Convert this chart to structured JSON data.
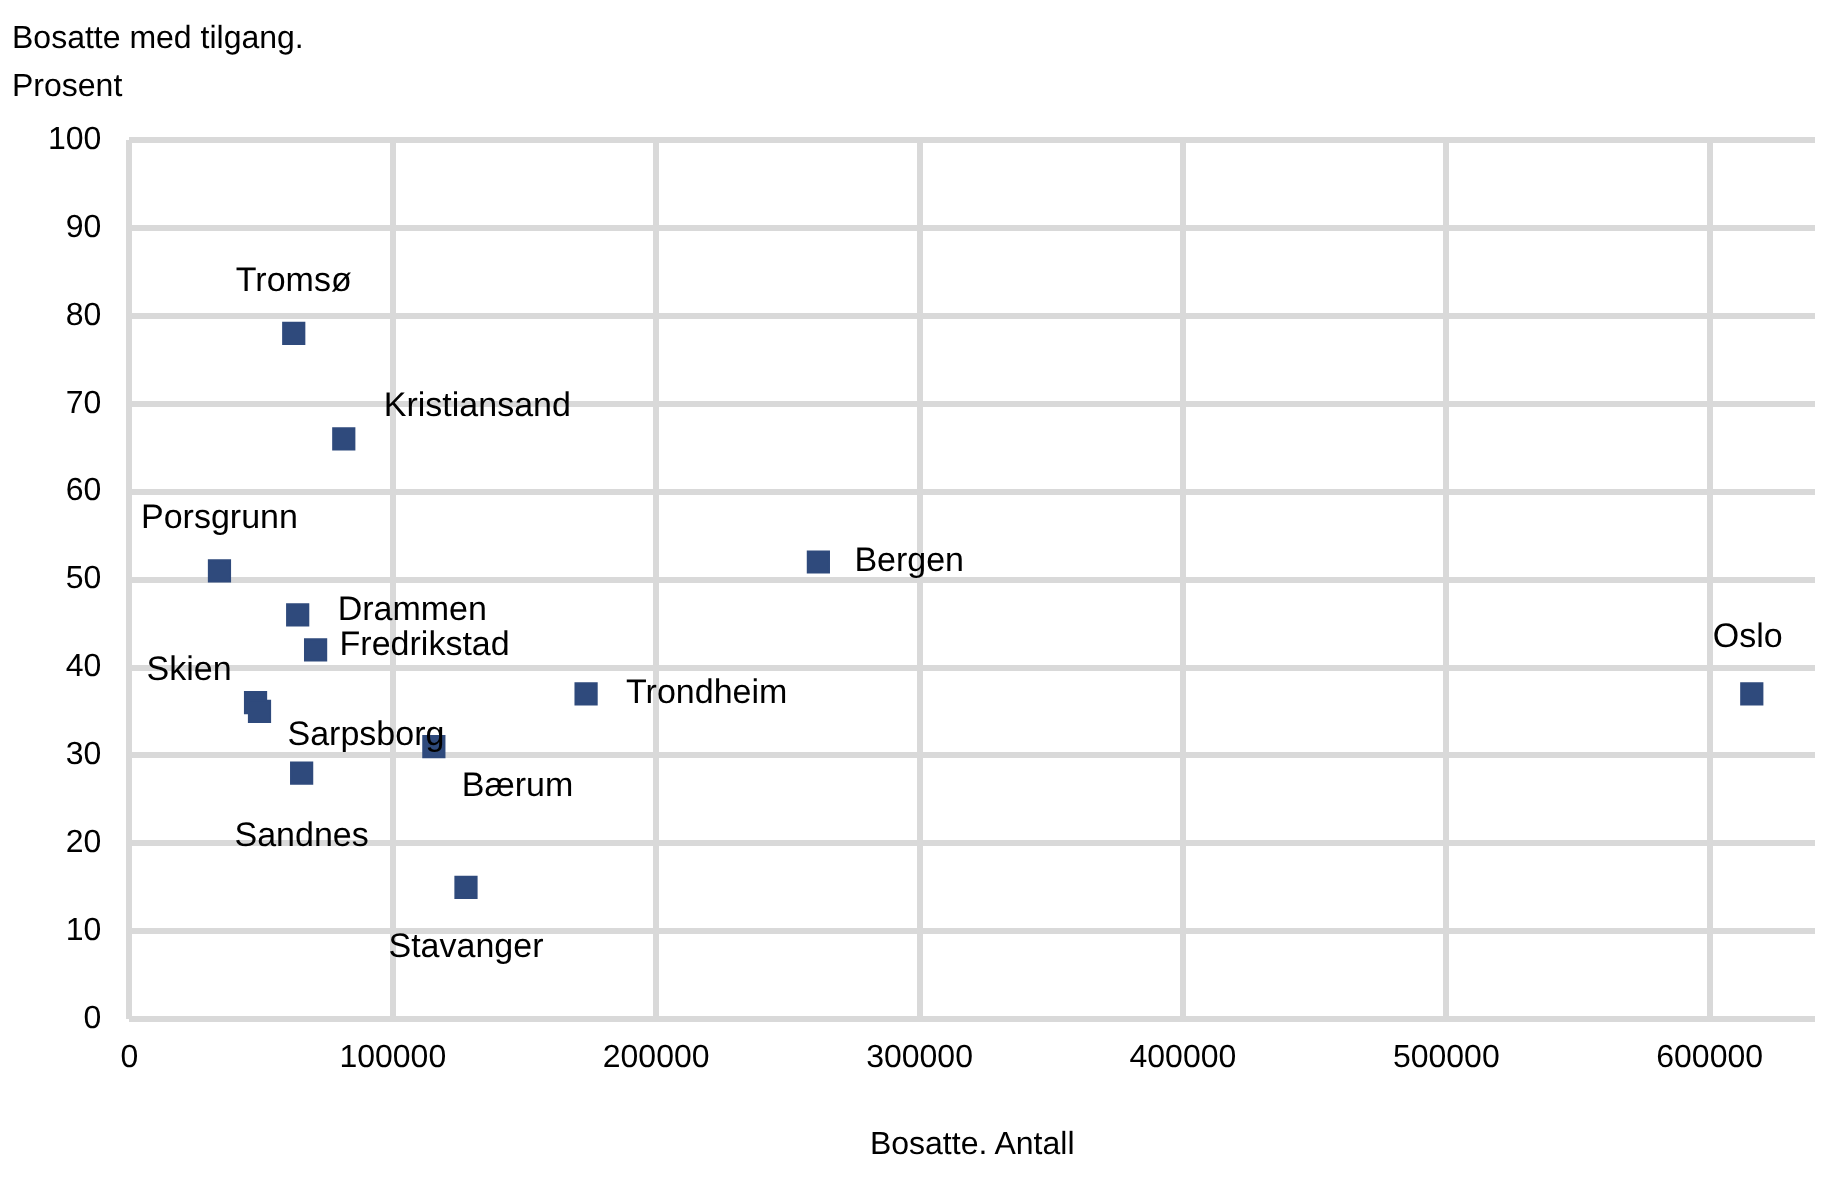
{
  "chart_data": {
    "type": "scatter",
    "xlabel": "Bosatte. Antall",
    "ylabel": "Bosatte med tilgang. Prosent",
    "x": [
      62400,
      81400,
      34200,
      63900,
      70700,
      47900,
      49400,
      65400,
      115600,
      127800,
      173400,
      261600,
      616000
    ],
    "series": [
      {
        "color": "#2f4a7c",
        "values": [
          78,
          66,
          51,
          46,
          42,
          36,
          35,
          28,
          31,
          15,
          37,
          52,
          37
        ]
      }
    ],
    "annotations": [
      {
        "text": "Tromsø",
        "x": 62400,
        "y": 78
      },
      {
        "text": "Kristiansand",
        "x": 81400,
        "y": 66
      },
      {
        "text": "Porsgrunn",
        "x": 34200,
        "y": 51
      },
      {
        "text": "Drammen",
        "x": 63900,
        "y": 46
      },
      {
        "text": "Fredrikstad",
        "x": 70700,
        "y": 42
      },
      {
        "text": "Skien",
        "x": 47900,
        "y": 36
      },
      {
        "text": "Sarpsborg",
        "x": 49400,
        "y": 35
      },
      {
        "text": "Sandnes",
        "x": 65400,
        "y": 28
      },
      {
        "text": "Bærum",
        "x": 115600,
        "y": 31
      },
      {
        "text": "Stavanger",
        "x": 127800,
        "y": 15
      },
      {
        "text": "Trondheim",
        "x": 173400,
        "y": 37
      },
      {
        "text": "Bergen",
        "x": 261600,
        "y": 52
      },
      {
        "text": "Oslo",
        "x": 616000,
        "y": 37
      }
    ],
    "xlim": [
      0,
      640000
    ],
    "xticks": [
      0,
      100000,
      200000,
      300000,
      400000,
      500000,
      600000
    ],
    "ylim": [
      0,
      100
    ],
    "yticks": [
      0,
      10,
      20,
      30,
      40,
      50,
      60,
      70,
      80,
      90,
      100
    ],
    "grid": true,
    "marker": "square",
    "legend": false
  }
}
